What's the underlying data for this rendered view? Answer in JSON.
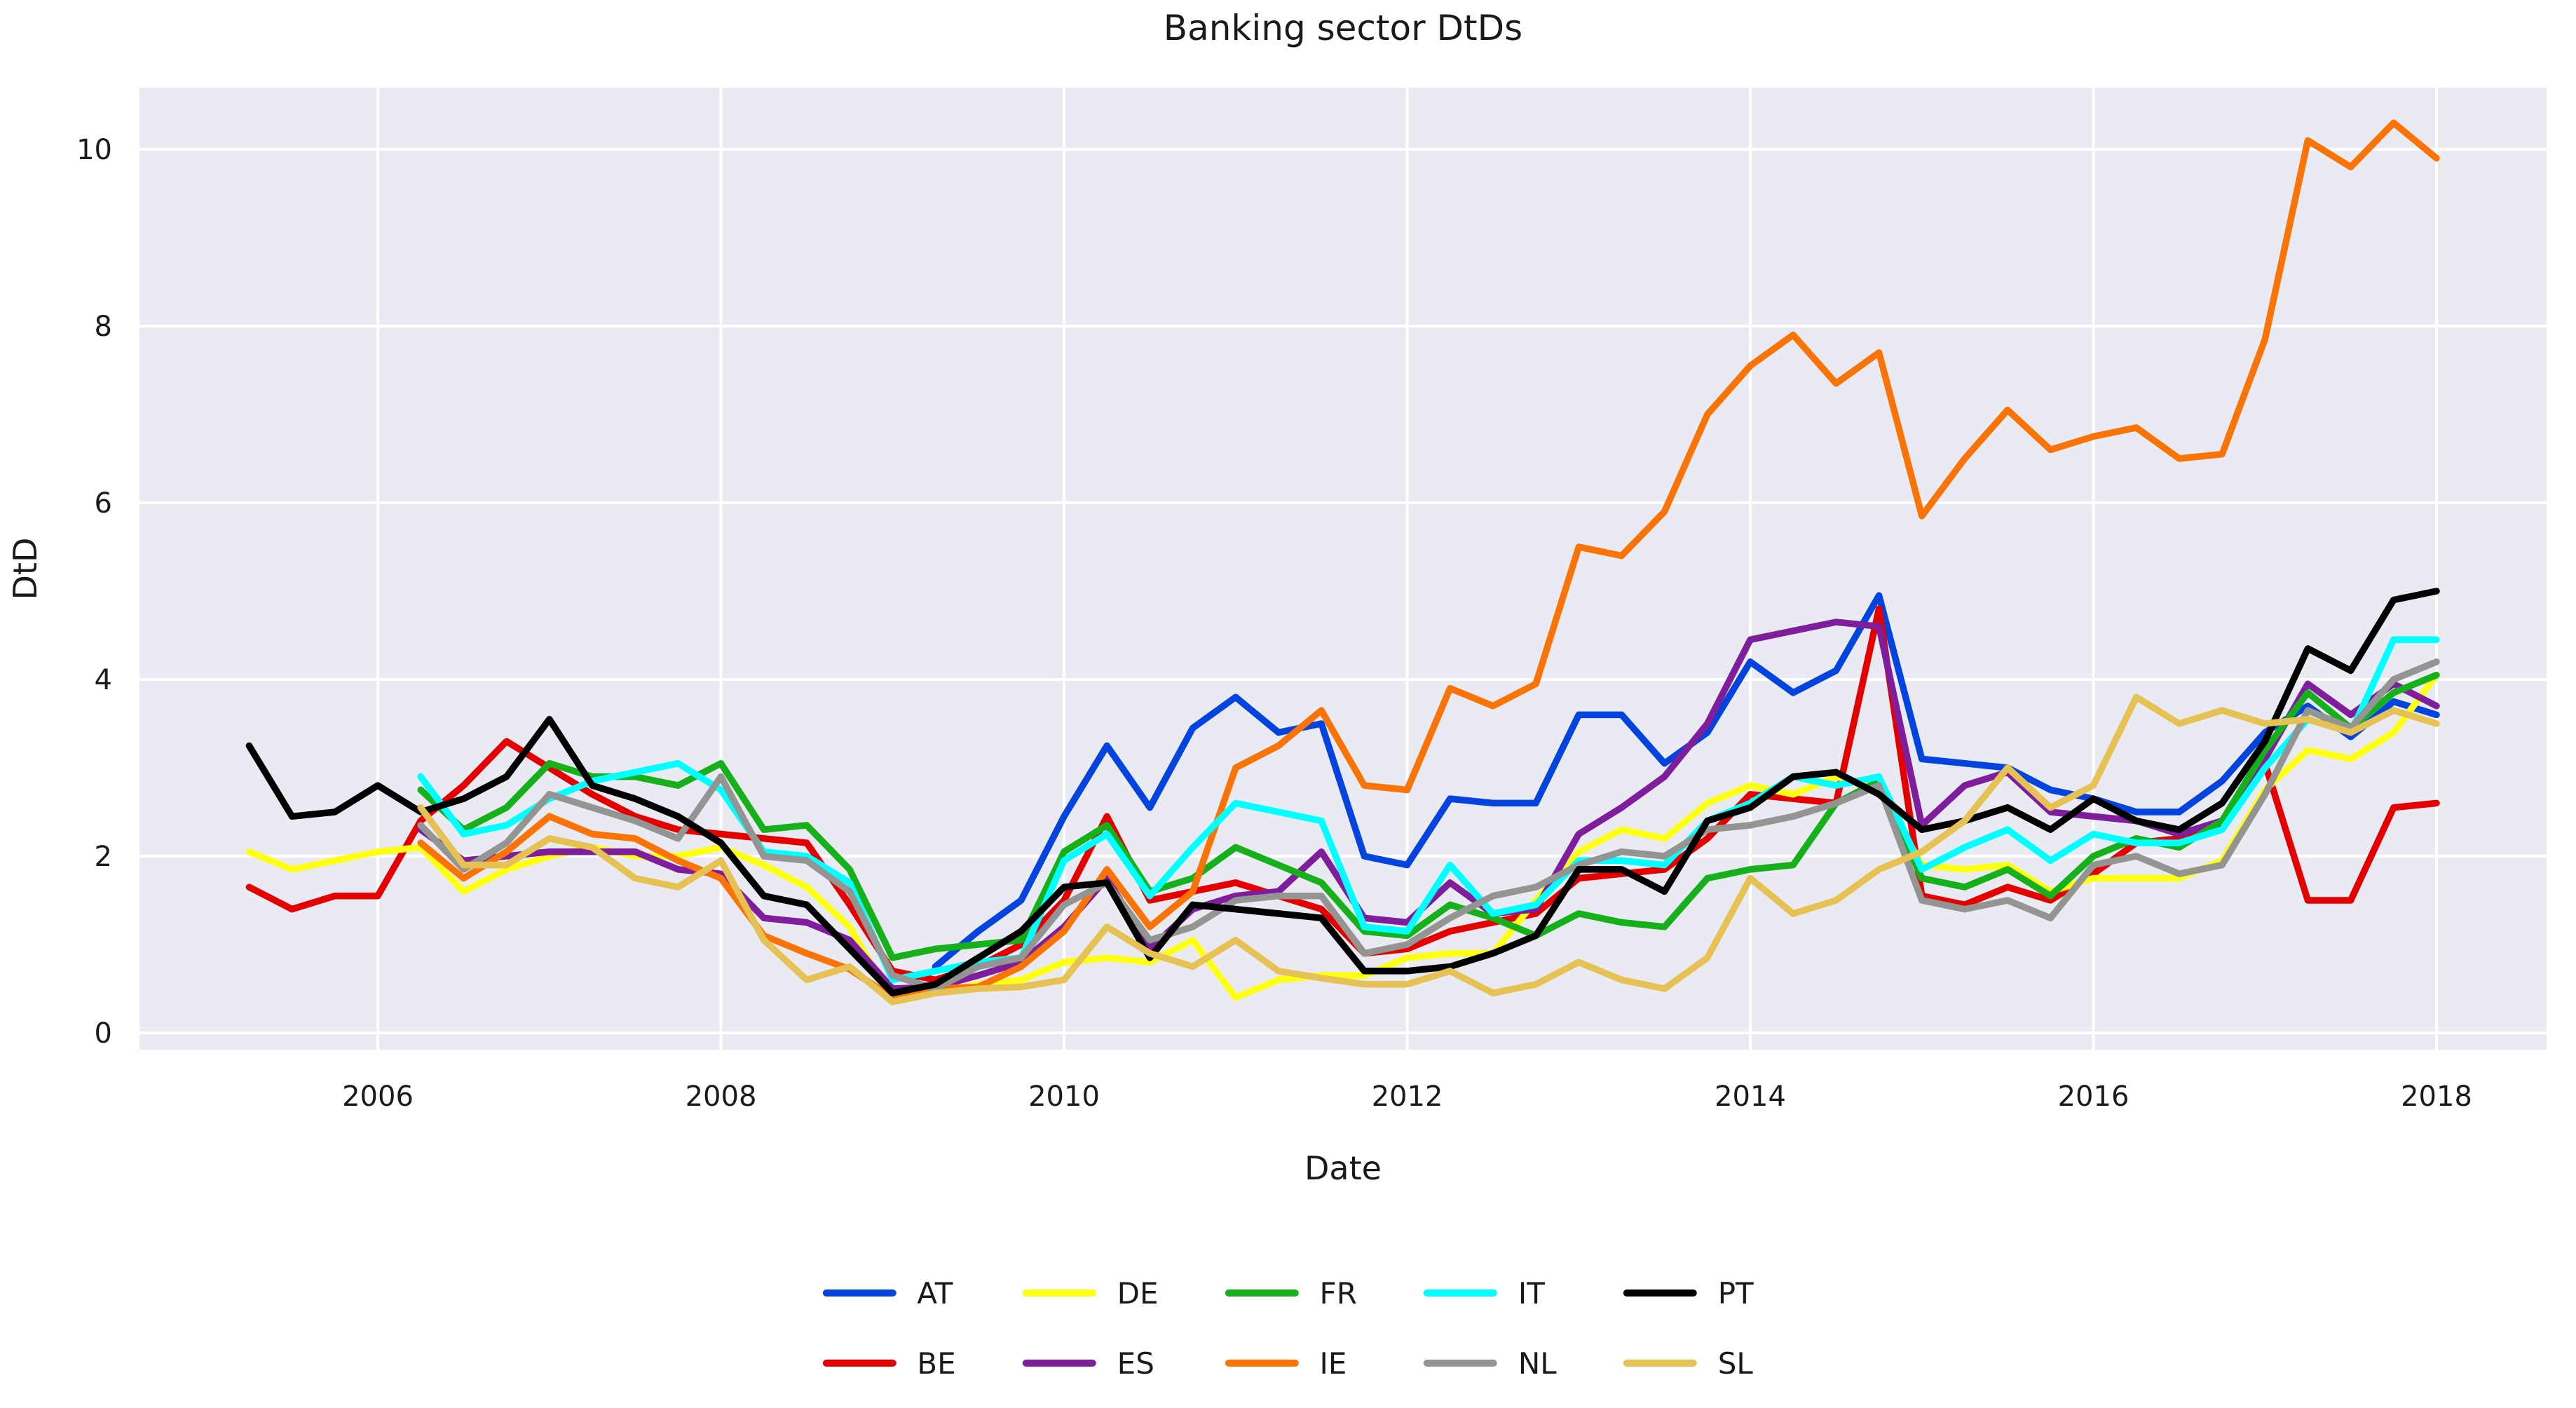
{
  "chart_data": {
    "type": "line",
    "title": "Banking sector DtDs",
    "xlabel": "Date",
    "ylabel": "DtD",
    "plot_bg": "#eaeaf2",
    "grid_color": "#ffffff",
    "grid_on": true,
    "legend_position": "bottom-center, 5 columns, 2 rows",
    "xlim": [
      2004.6,
      2018.65
    ],
    "ylim": [
      -0.2,
      10.7
    ],
    "x_ticks": [
      2006,
      2008,
      2010,
      2012,
      2014,
      2016,
      2018
    ],
    "y_ticks": [
      0,
      2,
      4,
      6,
      8,
      10
    ],
    "x": [
      2005.25,
      2005.5,
      2005.75,
      2006.0,
      2006.25,
      2006.5,
      2006.75,
      2007.0,
      2007.25,
      2007.5,
      2007.75,
      2008.0,
      2008.25,
      2008.5,
      2008.75,
      2009.0,
      2009.25,
      2009.5,
      2009.75,
      2010.0,
      2010.25,
      2010.5,
      2010.75,
      2011.0,
      2011.25,
      2011.5,
      2011.75,
      2012.0,
      2012.25,
      2012.5,
      2012.75,
      2013.0,
      2013.25,
      2013.5,
      2013.75,
      2014.0,
      2014.25,
      2014.5,
      2014.75,
      2015.0,
      2015.25,
      2015.5,
      2015.75,
      2016.0,
      2016.25,
      2016.5,
      2016.75,
      2017.0,
      2017.25,
      2017.5,
      2017.75,
      2018.0
    ],
    "series": [
      {
        "name": "AT",
        "color": "#0343df",
        "values": [
          null,
          null,
          null,
          null,
          null,
          null,
          null,
          null,
          null,
          null,
          null,
          null,
          null,
          null,
          null,
          null,
          0.75,
          1.15,
          1.5,
          2.45,
          3.25,
          2.55,
          3.45,
          3.8,
          3.4,
          3.5,
          2.0,
          1.9,
          2.65,
          2.6,
          2.6,
          3.6,
          3.6,
          3.05,
          3.4,
          4.2,
          3.85,
          4.1,
          4.95,
          3.1,
          3.05,
          3.0,
          2.75,
          2.65,
          2.5,
          2.5,
          2.85,
          3.4,
          3.7,
          3.35,
          3.75,
          3.6
        ]
      },
      {
        "name": "BE",
        "color": "#e50000",
        "values": [
          1.65,
          1.4,
          1.55,
          1.55,
          2.4,
          2.8,
          3.3,
          3.0,
          2.7,
          2.45,
          2.3,
          2.25,
          2.2,
          2.15,
          1.45,
          0.7,
          0.6,
          0.75,
          1.0,
          1.5,
          2.45,
          1.5,
          1.6,
          1.7,
          1.55,
          1.4,
          0.9,
          0.95,
          1.15,
          1.25,
          1.35,
          1.75,
          1.8,
          1.85,
          2.2,
          2.7,
          2.65,
          2.6,
          4.8,
          1.55,
          1.45,
          1.65,
          1.5,
          1.8,
          2.15,
          2.2,
          2.35,
          3.05,
          1.5,
          1.5,
          2.55,
          2.6
        ]
      },
      {
        "name": "DE",
        "color": "#ffff14",
        "values": [
          2.05,
          1.85,
          1.95,
          2.05,
          2.1,
          1.6,
          1.85,
          2.0,
          2.1,
          2.0,
          2.0,
          2.1,
          1.9,
          1.65,
          1.2,
          0.35,
          0.45,
          0.55,
          0.6,
          0.8,
          0.85,
          0.8,
          1.05,
          0.4,
          0.6,
          0.65,
          0.65,
          0.85,
          0.9,
          0.9,
          1.5,
          2.05,
          2.3,
          2.2,
          2.6,
          2.8,
          2.7,
          2.9,
          2.75,
          1.9,
          1.85,
          1.9,
          1.6,
          1.75,
          1.75,
          1.75,
          1.95,
          2.75,
          3.2,
          3.1,
          3.4,
          4.05
        ]
      },
      {
        "name": "ES",
        "color": "#7e1e9c",
        "values": [
          null,
          null,
          null,
          null,
          2.3,
          1.95,
          2.0,
          2.05,
          2.05,
          2.05,
          1.85,
          1.8,
          1.3,
          1.25,
          1.05,
          0.5,
          0.52,
          0.65,
          0.8,
          1.2,
          1.75,
          0.95,
          1.4,
          1.55,
          1.6,
          2.05,
          1.3,
          1.25,
          1.7,
          1.35,
          1.4,
          2.25,
          2.55,
          2.9,
          3.5,
          4.45,
          4.55,
          4.65,
          4.6,
          2.35,
          2.8,
          2.95,
          2.5,
          2.45,
          2.4,
          2.25,
          2.4,
          3.1,
          3.95,
          3.6,
          3.95,
          3.7
        ]
      },
      {
        "name": "FR",
        "color": "#15b01a",
        "values": [
          null,
          null,
          null,
          null,
          2.75,
          2.3,
          2.55,
          3.05,
          2.9,
          2.9,
          2.8,
          3.05,
          2.3,
          2.35,
          1.85,
          0.85,
          0.95,
          1.0,
          1.05,
          2.05,
          2.35,
          1.6,
          1.75,
          2.1,
          1.9,
          1.7,
          1.15,
          1.1,
          1.45,
          1.3,
          1.1,
          1.35,
          1.25,
          1.2,
          1.75,
          1.85,
          1.9,
          2.6,
          2.85,
          1.75,
          1.65,
          1.85,
          1.55,
          2.0,
          2.2,
          2.1,
          2.4,
          3.2,
          3.85,
          3.45,
          3.85,
          4.05
        ]
      },
      {
        "name": "IE",
        "color": "#f97306",
        "values": [
          null,
          null,
          null,
          null,
          2.15,
          1.75,
          2.05,
          2.45,
          2.25,
          2.2,
          1.95,
          1.75,
          1.1,
          0.9,
          0.72,
          0.4,
          0.5,
          0.52,
          0.75,
          1.15,
          1.85,
          1.2,
          1.6,
          3.0,
          3.25,
          3.65,
          2.8,
          2.75,
          3.9,
          3.7,
          3.95,
          5.5,
          5.4,
          5.9,
          7.0,
          7.55,
          7.9,
          7.35,
          7.7,
          5.85,
          6.5,
          7.05,
          6.6,
          6.75,
          6.85,
          6.5,
          6.55,
          7.85,
          10.1,
          9.8,
          10.3,
          9.9
        ]
      },
      {
        "name": "IT",
        "color": "#00ffff",
        "values": [
          null,
          null,
          null,
          null,
          2.9,
          2.25,
          2.35,
          2.65,
          2.85,
          2.95,
          3.05,
          2.75,
          2.05,
          2.0,
          1.7,
          0.6,
          0.7,
          0.8,
          0.85,
          1.95,
          2.25,
          1.55,
          2.1,
          2.6,
          2.5,
          2.4,
          1.2,
          1.15,
          1.9,
          1.35,
          1.45,
          1.95,
          1.95,
          1.9,
          2.4,
          2.6,
          2.9,
          2.8,
          2.9,
          1.85,
          2.1,
          2.3,
          1.95,
          2.25,
          2.15,
          2.15,
          2.3,
          3.0,
          3.55,
          3.4,
          4.45,
          4.45
        ]
      },
      {
        "name": "NL",
        "color": "#929591",
        "values": [
          null,
          null,
          null,
          null,
          2.35,
          1.85,
          2.15,
          2.7,
          2.55,
          2.4,
          2.2,
          2.9,
          2.0,
          1.95,
          1.6,
          0.65,
          0.5,
          0.75,
          0.85,
          1.45,
          1.7,
          1.05,
          1.2,
          1.5,
          1.55,
          1.55,
          0.9,
          1.0,
          1.3,
          1.55,
          1.65,
          1.9,
          2.05,
          2.0,
          2.3,
          2.35,
          2.45,
          2.6,
          2.8,
          1.5,
          1.4,
          1.5,
          1.3,
          1.9,
          2.0,
          1.8,
          1.9,
          2.7,
          3.65,
          3.45,
          4.0,
          4.2
        ]
      },
      {
        "name": "PT",
        "color": "#000000",
        "values": [
          3.25,
          2.45,
          2.5,
          2.8,
          2.5,
          2.65,
          2.9,
          3.55,
          2.8,
          2.65,
          2.45,
          2.15,
          1.55,
          1.45,
          0.95,
          0.45,
          0.55,
          0.85,
          1.15,
          1.65,
          1.7,
          0.85,
          1.45,
          1.4,
          1.35,
          1.3,
          0.7,
          0.7,
          0.75,
          0.9,
          1.1,
          1.85,
          1.85,
          1.6,
          2.4,
          2.55,
          2.9,
          2.95,
          2.7,
          2.3,
          2.4,
          2.55,
          2.3,
          2.65,
          2.4,
          2.3,
          2.6,
          3.3,
          4.35,
          4.1,
          4.9,
          5.0
        ]
      },
      {
        "name": "SL",
        "color": "#e6c254",
        "values": [
          null,
          null,
          null,
          null,
          2.55,
          1.9,
          1.9,
          2.2,
          2.1,
          1.75,
          1.65,
          1.95,
          1.05,
          0.6,
          0.75,
          0.35,
          0.45,
          0.5,
          0.52,
          0.6,
          1.2,
          0.9,
          0.75,
          1.05,
          0.7,
          0.62,
          0.55,
          0.55,
          0.7,
          0.45,
          0.55,
          0.8,
          0.6,
          0.5,
          0.85,
          1.75,
          1.35,
          1.5,
          1.85,
          2.05,
          2.4,
          3.0,
          2.55,
          2.8,
          3.8,
          3.5,
          3.65,
          3.5,
          3.55,
          3.4,
          3.65,
          3.5
        ]
      }
    ]
  }
}
